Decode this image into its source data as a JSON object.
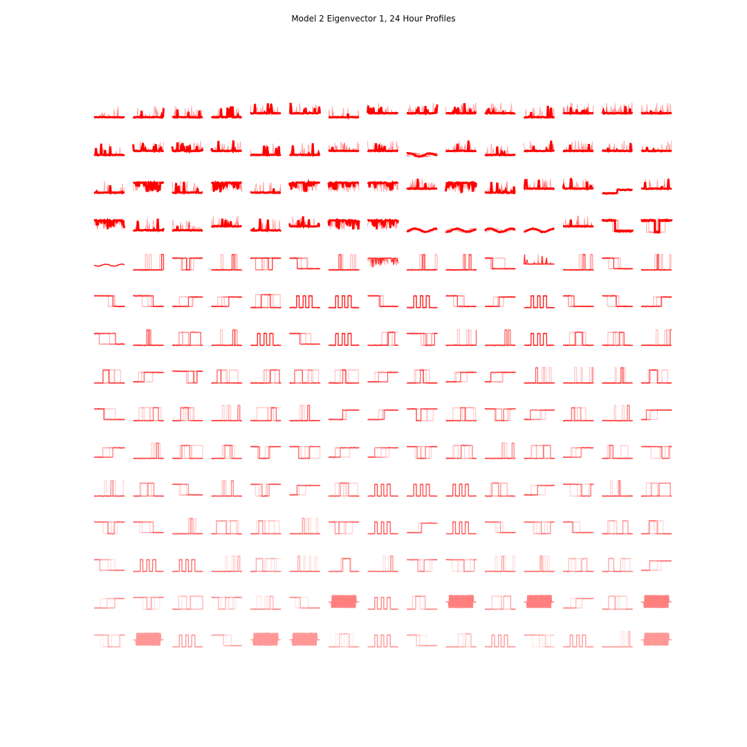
{
  "figure": {
    "title": "Model 2 Eigenvector 1, 24 Hour Profiles"
  },
  "chart_data": {
    "type": "line",
    "title": "Model 2 Eigenvector 1, 24 Hour Profiles",
    "xlabel": "",
    "ylabel": "",
    "grid": false,
    "axes_visible": false,
    "layout": {
      "rows": 15,
      "cols": 15
    },
    "x_hours": [
      0,
      24
    ],
    "line_color": "#ff0000",
    "opacity_by_row": [
      1.0,
      1.0,
      1.0,
      1.0,
      0.78,
      0.72,
      0.66,
      0.62,
      0.58,
      0.52,
      0.48,
      0.42,
      0.36,
      0.3,
      0.24
    ],
    "profile_shape_rows": [
      [
        "flat-low",
        "flat-low",
        "flat-low",
        "flat-low",
        "flat-high",
        "flat-high",
        "flat-low",
        "flat-high",
        "flat-high",
        "flat-high",
        "flat-high",
        "flat-low",
        "flat-high",
        "flat-high",
        "flat-high"
      ],
      [
        "flat-low",
        "flat-high",
        "flat-high",
        "flat-high",
        "flat-low",
        "flat-low",
        "flat-high",
        "flat-high",
        "wave",
        "flat-high",
        "flat-low",
        "flat-high",
        "flat-high",
        "flat-high",
        "flat-high"
      ],
      [
        "flat-low",
        "high-noisy",
        "flat-low",
        "high-noisy",
        "flat-low",
        "high-noisy",
        "high-noisy",
        "high-noisy",
        "flat-high",
        "high-noisy",
        "flat-low",
        "flat-high",
        "flat-high",
        "dip",
        "flat-high"
      ],
      [
        "high-noisy",
        "flat-low",
        "flat-low",
        "flat-high",
        "flat-low",
        "flat-high",
        "high-noisy",
        "high-noisy",
        "wave",
        "wave",
        "wave",
        "wave",
        "flat-high",
        "step-down",
        "box-low"
      ],
      [
        "flat-mid",
        "spike",
        "box-low",
        "spike",
        "box-low",
        "step-down",
        "spike",
        "high-noisy",
        "spike",
        "spike",
        "step-down",
        "flat-high",
        "spike",
        "step-down",
        "spike"
      ],
      [
        "step-down",
        "step-down",
        "step-up",
        "step-up",
        "pulse",
        "box",
        "box",
        "step-down",
        "box",
        "step-down",
        "step-up",
        "box",
        "step-down",
        "step-down",
        "step-up"
      ],
      [
        "step-down",
        "spike",
        "pulse",
        "spike",
        "box",
        "step-down",
        "box",
        "pulse",
        "box-low",
        "spike",
        "spike",
        "box",
        "pulse",
        "pulse",
        "spike"
      ],
      [
        "pulse",
        "step-up",
        "box-low",
        "pulse",
        "pulse",
        "pulse",
        "pulse",
        "step-up",
        "pulse",
        "step-up",
        "step-up",
        "spike",
        "spike",
        "spike",
        "pulse"
      ],
      [
        "step-down",
        "pulse",
        "pulse",
        "spike",
        "pulse",
        "spike",
        "step-up",
        "step-up",
        "box-low",
        "pulse",
        "box-low",
        "step-up",
        "pulse",
        "spike",
        "step-up"
      ],
      [
        "step-up",
        "spike",
        "pulse",
        "pulse",
        "box-low",
        "box-low",
        "step-up",
        "step-up",
        "box-low",
        "pulse",
        "spike",
        "pulse",
        "step-up",
        "pulse",
        "box-low"
      ],
      [
        "spike",
        "pulse",
        "step-down",
        "spike",
        "box-low",
        "step-up",
        "pulse",
        "box",
        "box",
        "box",
        "pulse",
        "step-up",
        "box-low",
        "spike",
        "pulse"
      ],
      [
        "box-low",
        "step-down",
        "spike",
        "pulse",
        "pulse",
        "spike",
        "box-low",
        "box",
        "step-up",
        "box",
        "step-down",
        "box-low",
        "step-down",
        "pulse",
        "pulse"
      ],
      [
        "step-down",
        "box",
        "box",
        "spike",
        "pulse",
        "spike",
        "pulse",
        "spike",
        "box-low",
        "box-low",
        "spike",
        "spike",
        "pulse",
        "pulse",
        "step-up"
      ],
      [
        "step-up",
        "box-low",
        "pulse",
        "box-low",
        "pulse",
        "step-down",
        "noise",
        "box",
        "pulse",
        "noise",
        "pulse",
        "noise",
        "step-up",
        "pulse",
        "noise"
      ],
      [
        "box-low",
        "noise",
        "box",
        "step-down",
        "noise",
        "noise",
        "pulse",
        "box",
        "step-down",
        "pulse",
        "box",
        "box-low",
        "box",
        "spike",
        "noise"
      ]
    ]
  }
}
